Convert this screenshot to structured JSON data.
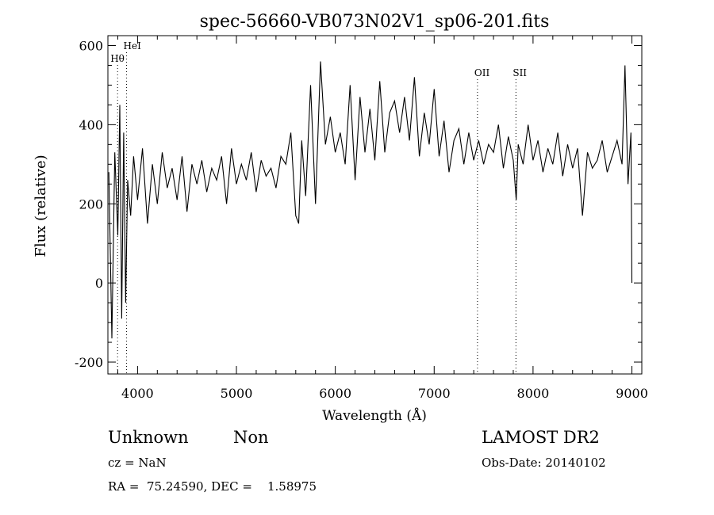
{
  "chart_data": {
    "type": "line",
    "title": "spec-56660-VB073N02V1_sp06-201.fits",
    "xlabel": "Wavelength (Å)",
    "ylabel": "Flux (relative)",
    "xlim": [
      3700,
      9100
    ],
    "ylim": [
      -230,
      625
    ],
    "xticks": [
      4000,
      5000,
      6000,
      7000,
      8000,
      9000
    ],
    "yticks": [
      -200,
      0,
      200,
      400,
      600
    ],
    "line_marks": [
      {
        "label": "HeI",
        "x": 3889
      },
      {
        "label": "Hθ",
        "x": 3798
      },
      {
        "label": "OII",
        "x": 7438
      },
      {
        "label": "SII",
        "x": 7827
      }
    ],
    "series": [
      {
        "x": [
          3710,
          3740,
          3770,
          3800,
          3820,
          3840,
          3860,
          3880,
          3900,
          3930,
          3960,
          4000,
          4050,
          4100,
          4150,
          4200,
          4250,
          4300,
          4350,
          4400,
          4450,
          4500,
          4550,
          4600,
          4650,
          4700,
          4750,
          4800,
          4850,
          4900,
          4950,
          5000,
          5050,
          5100,
          5150,
          5200,
          5250,
          5300,
          5350,
          5400,
          5450,
          5500,
          5550,
          5600,
          5630,
          5660,
          5700,
          5750,
          5800,
          5850,
          5900,
          5950,
          6000,
          6050,
          6100,
          6150,
          6200,
          6250,
          6300,
          6350,
          6400,
          6450,
          6500,
          6550,
          6600,
          6650,
          6700,
          6750,
          6800,
          6850,
          6900,
          6950,
          7000,
          7050,
          7100,
          7150,
          7200,
          7250,
          7300,
          7350,
          7400,
          7450,
          7500,
          7550,
          7600,
          7650,
          7700,
          7750,
          7800,
          7830,
          7850,
          7900,
          7950,
          8000,
          8050,
          8100,
          8150,
          8200,
          8250,
          8300,
          8350,
          8400,
          8450,
          8500,
          8550,
          8600,
          8650,
          8700,
          8750,
          8800,
          8850,
          8900,
          8930,
          8960,
          8990,
          9000
        ],
        "y": [
          280,
          -140,
          330,
          120,
          450,
          -90,
          380,
          -50,
          260,
          170,
          320,
          210,
          340,
          150,
          300,
          200,
          330,
          240,
          290,
          210,
          320,
          180,
          300,
          250,
          310,
          230,
          290,
          260,
          320,
          200,
          340,
          250,
          300,
          260,
          330,
          230,
          310,
          270,
          290,
          240,
          320,
          300,
          380,
          170,
          150,
          360,
          220,
          500,
          200,
          560,
          350,
          420,
          330,
          380,
          300,
          500,
          260,
          470,
          330,
          440,
          310,
          510,
          330,
          430,
          460,
          380,
          470,
          360,
          520,
          320,
          430,
          350,
          490,
          320,
          410,
          280,
          360,
          390,
          300,
          380,
          310,
          360,
          300,
          350,
          330,
          400,
          290,
          370,
          310,
          210,
          350,
          300,
          400,
          310,
          360,
          280,
          340,
          300,
          380,
          270,
          350,
          290,
          340,
          170,
          330,
          290,
          310,
          360,
          280,
          320,
          360,
          300,
          550,
          250,
          380,
          0
        ]
      }
    ]
  },
  "footer": {
    "class_label": "Unknown",
    "subclass_label": "Non",
    "cz_text": "cz = NaN",
    "radec_text": "RA =  75.24590, DEC =    1.58975",
    "survey_text": "LAMOST DR2",
    "obsdate_text": "Obs-Date: 20140102"
  }
}
